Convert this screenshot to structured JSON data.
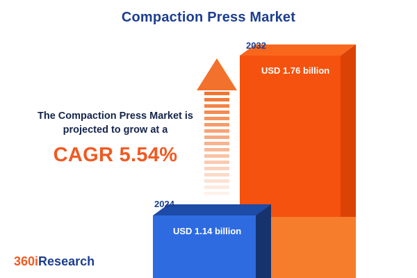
{
  "title": "Compaction Press Market",
  "headline": {
    "line1": "The Compaction Press Market is",
    "line2": "projected to grow at a",
    "cagr": "CAGR 5.54%"
  },
  "chart_data": {
    "type": "bar",
    "title": "Compaction Press Market",
    "categories": [
      "2024",
      "2032"
    ],
    "values": [
      1.14,
      1.76
    ],
    "unit": "USD billion",
    "bars": [
      {
        "year": "2024",
        "label": "USD 1.14 billion",
        "value": 1.14,
        "color": "#2e6be0"
      },
      {
        "year": "2032",
        "label": "USD 1.76 billion",
        "value": 1.76,
        "color": "#f4520e"
      }
    ],
    "growth_annotation": "CAGR 5.54%",
    "legend": "none",
    "grid": false
  },
  "logo": {
    "text_orange": "360i",
    "text_navy": "Research"
  },
  "colors": {
    "navy": "#1c3e91",
    "dark_text": "#14244a",
    "accent_orange": "#f05a22",
    "bar_blue": "#2e6be0",
    "bar_blue_side": "#16336e",
    "bar_orange": "#f4520e",
    "bar_orange_side": "#db4206",
    "bar_orange_lower": "#f57d2b",
    "arrow_orange": "#f2712c"
  }
}
